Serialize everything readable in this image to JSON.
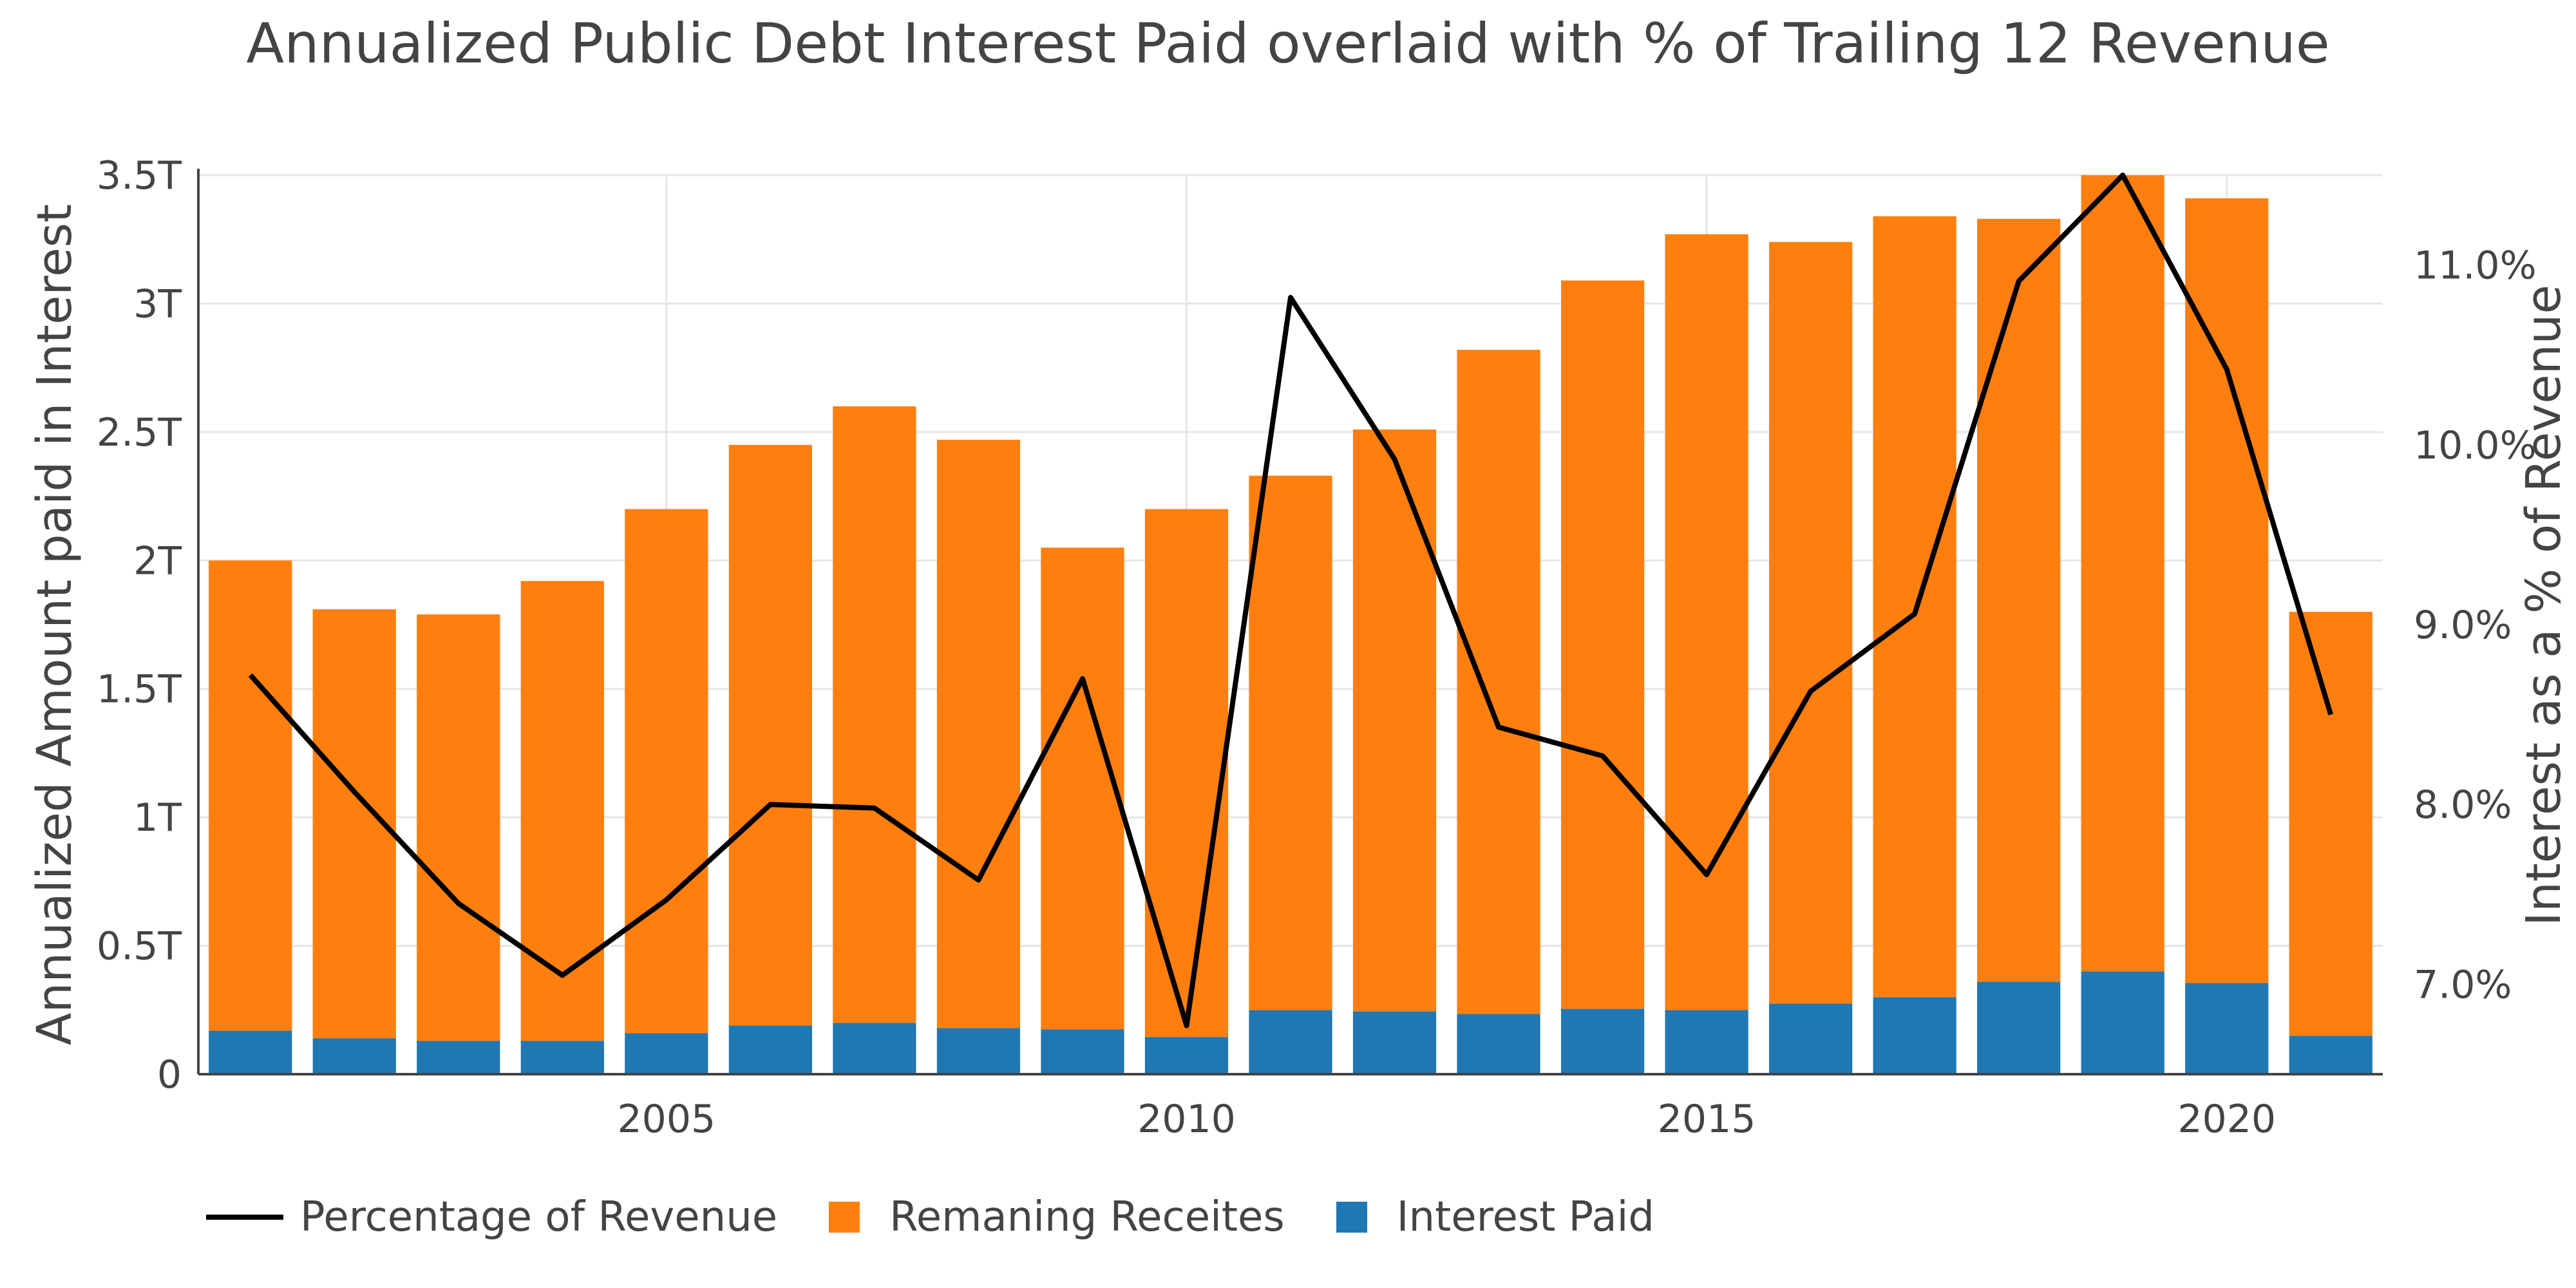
{
  "title": "Annualized Public Debt Interest Paid overlaid with % of Trailing 12 Revenue",
  "colors": {
    "interest": "#1f77b4",
    "remaining": "#ff7f0e",
    "line": "#000000",
    "grid": "#e6e6e6"
  },
  "legend": [
    {
      "label": "Percentage of Revenue",
      "type": "line",
      "color": "#000000"
    },
    {
      "label": "Remaning Receites",
      "type": "box",
      "color": "#ff7f0e"
    },
    {
      "label": "Interest Paid",
      "type": "box",
      "color": "#1f77b4"
    }
  ],
  "chart_data": {
    "type": "bar",
    "stacked": true,
    "x": [
      2001,
      2002,
      2003,
      2004,
      2005,
      2006,
      2007,
      2008,
      2009,
      2010,
      2011,
      2012,
      2013,
      2014,
      2015,
      2016,
      2017,
      2018,
      2019,
      2020,
      2021
    ],
    "series": [
      {
        "name": "Interest Paid",
        "axis": "left",
        "color": "#1f77b4",
        "values": [
          0.17,
          0.14,
          0.13,
          0.13,
          0.16,
          0.19,
          0.2,
          0.18,
          0.175,
          0.145,
          0.25,
          0.245,
          0.235,
          0.255,
          0.25,
          0.275,
          0.3,
          0.36,
          0.4,
          0.355,
          0.15
        ]
      },
      {
        "name": "Remaning Receites",
        "axis": "left",
        "color": "#ff7f0e",
        "values": [
          1.83,
          1.67,
          1.66,
          1.79,
          2.04,
          2.26,
          2.4,
          2.29,
          1.875,
          2.055,
          2.08,
          2.265,
          2.585,
          2.835,
          3.02,
          2.965,
          3.04,
          2.97,
          3.1,
          3.055,
          1.65
        ]
      },
      {
        "name": "Percentage of Revenue",
        "axis": "right",
        "type": "line",
        "color": "#000000",
        "values": [
          8.72,
          8.07,
          7.45,
          7.05,
          7.47,
          8.0,
          7.98,
          7.58,
          8.7,
          6.77,
          10.82,
          9.92,
          8.43,
          8.27,
          7.61,
          8.63,
          9.06,
          10.91,
          11.5,
          10.42,
          8.5
        ]
      }
    ],
    "xlabel": "",
    "ylabel": "Annualized Amount paid in Interest",
    "y2label": "Interest as a % of Revenue",
    "ylim": [
      0,
      3.5
    ],
    "y2lim": [
      6.5,
      11.5
    ],
    "xlim": [
      2000.5,
      2021.5
    ],
    "yticks": [
      0,
      0.5,
      1,
      1.5,
      2,
      2.5,
      3,
      3.5
    ],
    "yticklabels": [
      "0",
      "0.5T",
      "1T",
      "1.5T",
      "2T",
      "2.5T",
      "3T",
      "3.5T"
    ],
    "y2ticks": [
      7,
      8,
      9,
      10,
      11
    ],
    "y2ticklabels": [
      "7.0%",
      "8.0%",
      "9.0%",
      "10.0%",
      "11.0%"
    ],
    "xticks": [
      2005,
      2010,
      2015,
      2020
    ],
    "xticklabels": [
      "2005",
      "2010",
      "2015",
      "2020"
    ],
    "grid": true,
    "legend_position": "bottom-left"
  }
}
